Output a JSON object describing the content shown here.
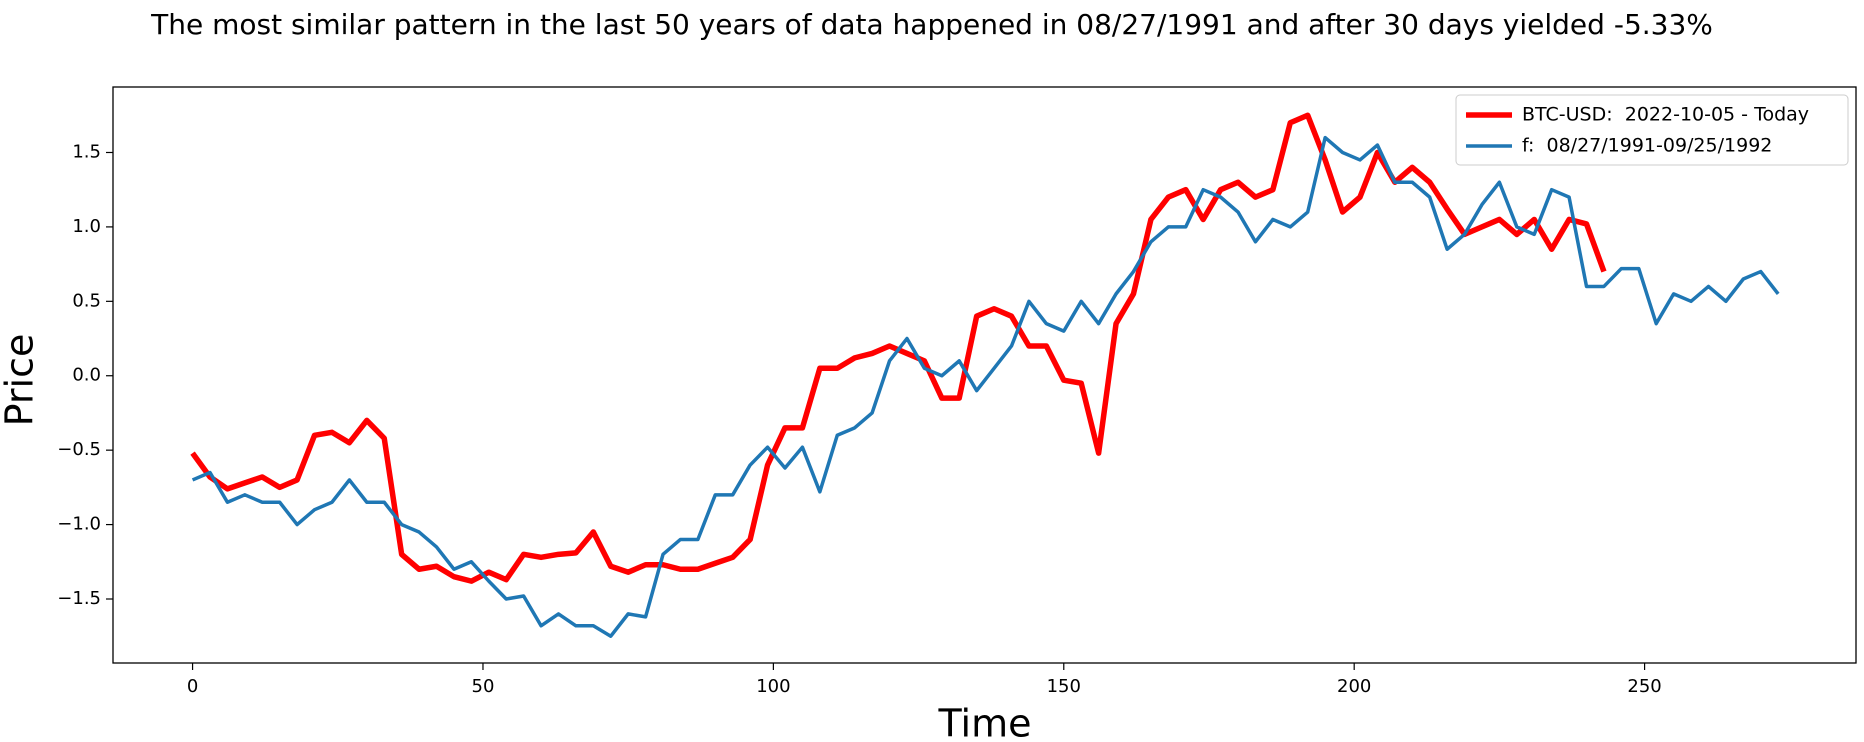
{
  "chart_data": {
    "type": "line",
    "title": "The most similar pattern in the last 50 years of data happened in 08/27/1991 and after 30 days yielded -5.33%",
    "x_label": "Time",
    "y_label": "Price",
    "x": [
      0,
      3,
      6,
      9,
      12,
      15,
      18,
      21,
      24,
      27,
      30,
      33,
      36,
      39,
      42,
      45,
      48,
      51,
      54,
      57,
      60,
      63,
      66,
      69,
      72,
      75,
      78,
      81,
      84,
      87,
      90,
      93,
      96,
      99,
      102,
      105,
      108,
      111,
      114,
      117,
      120,
      123,
      126,
      129,
      132,
      135,
      138,
      141,
      144,
      147,
      150,
      153,
      156,
      159,
      162,
      165,
      168,
      171,
      174,
      177,
      180,
      183,
      186,
      189,
      192,
      195,
      198,
      201,
      204,
      207,
      210,
      213,
      216,
      219,
      222,
      225,
      228,
      231,
      234,
      237,
      240,
      243,
      246,
      249,
      252,
      255,
      258,
      261,
      264,
      267,
      270,
      273
    ],
    "series": [
      {
        "name": "BTC-USD:  2022-10-05 - Today",
        "color": "#ff0000",
        "values": [
          -0.52,
          -0.68,
          -0.76,
          -0.72,
          -0.68,
          -0.75,
          -0.7,
          -0.4,
          -0.38,
          -0.45,
          -0.3,
          -0.42,
          -1.2,
          -1.3,
          -1.28,
          -1.35,
          -1.38,
          -1.32,
          -1.37,
          -1.2,
          -1.22,
          -1.2,
          -1.19,
          -1.05,
          -1.28,
          -1.32,
          -1.27,
          -1.27,
          -1.3,
          -1.3,
          -1.26,
          -1.22,
          -1.1,
          -0.6,
          -0.35,
          -0.35,
          0.05,
          0.05,
          0.12,
          0.15,
          0.2,
          0.15,
          0.1,
          -0.15,
          -0.15,
          0.4,
          0.45,
          0.4,
          0.2,
          0.2,
          -0.03,
          -0.05,
          -0.52,
          0.35,
          0.55,
          1.05,
          1.2,
          1.25,
          1.05,
          1.25,
          1.3,
          1.2,
          1.25,
          1.7,
          1.75,
          1.45,
          1.1,
          1.2,
          1.5,
          1.3,
          1.4,
          1.3,
          1.12,
          0.95,
          1.0,
          1.05,
          0.95,
          1.05,
          0.85,
          1.05,
          1.02,
          0.7,
          null,
          null,
          null,
          null,
          null,
          null,
          null,
          null,
          null,
          null
        ]
      },
      {
        "name": "f:  08/27/1991-09/25/1992",
        "color": "#1f77b4",
        "values": [
          -0.7,
          -0.65,
          -0.85,
          -0.8,
          -0.85,
          -0.85,
          -1.0,
          -0.9,
          -0.85,
          -0.7,
          -0.85,
          -0.85,
          -1.0,
          -1.05,
          -1.15,
          -1.3,
          -1.25,
          -1.38,
          -1.5,
          -1.48,
          -1.68,
          -1.6,
          -1.68,
          -1.68,
          -1.75,
          -1.6,
          -1.62,
          -1.2,
          -1.1,
          -1.1,
          -0.8,
          -0.8,
          -0.6,
          -0.48,
          -0.62,
          -0.48,
          -0.78,
          -0.4,
          -0.35,
          -0.25,
          0.1,
          0.25,
          0.05,
          0.0,
          0.1,
          -0.1,
          0.05,
          0.2,
          0.5,
          0.35,
          0.3,
          0.5,
          0.35,
          0.55,
          0.7,
          0.9,
          1.0,
          1.0,
          1.25,
          1.2,
          1.1,
          0.9,
          1.05,
          1.0,
          1.1,
          1.6,
          1.5,
          1.45,
          1.55,
          1.3,
          1.3,
          1.2,
          0.85,
          0.95,
          1.15,
          1.3,
          1.0,
          0.95,
          1.25,
          1.2,
          0.6,
          0.6,
          0.72,
          0.72,
          0.35,
          0.55,
          0.5,
          0.6,
          0.5,
          0.65,
          0.7,
          0.55
        ]
      }
    ],
    "xlim": [
      -13.7,
      286.4
    ],
    "ylim": [
      -1.93,
      1.94
    ],
    "xticks": [
      0,
      50,
      100,
      150,
      200,
      250
    ],
    "yticks": [
      {
        "value": -1.5,
        "label": "−1.5"
      },
      {
        "value": -1,
        "label": "−1.0"
      },
      {
        "value": -0.5,
        "label": "−0.5"
      },
      {
        "value": 0,
        "label": "0.0"
      },
      0.5,
      {
        "value": 1,
        "label": "1.0"
      },
      1.5
    ],
    "grid": false,
    "legend": "upper right"
  }
}
